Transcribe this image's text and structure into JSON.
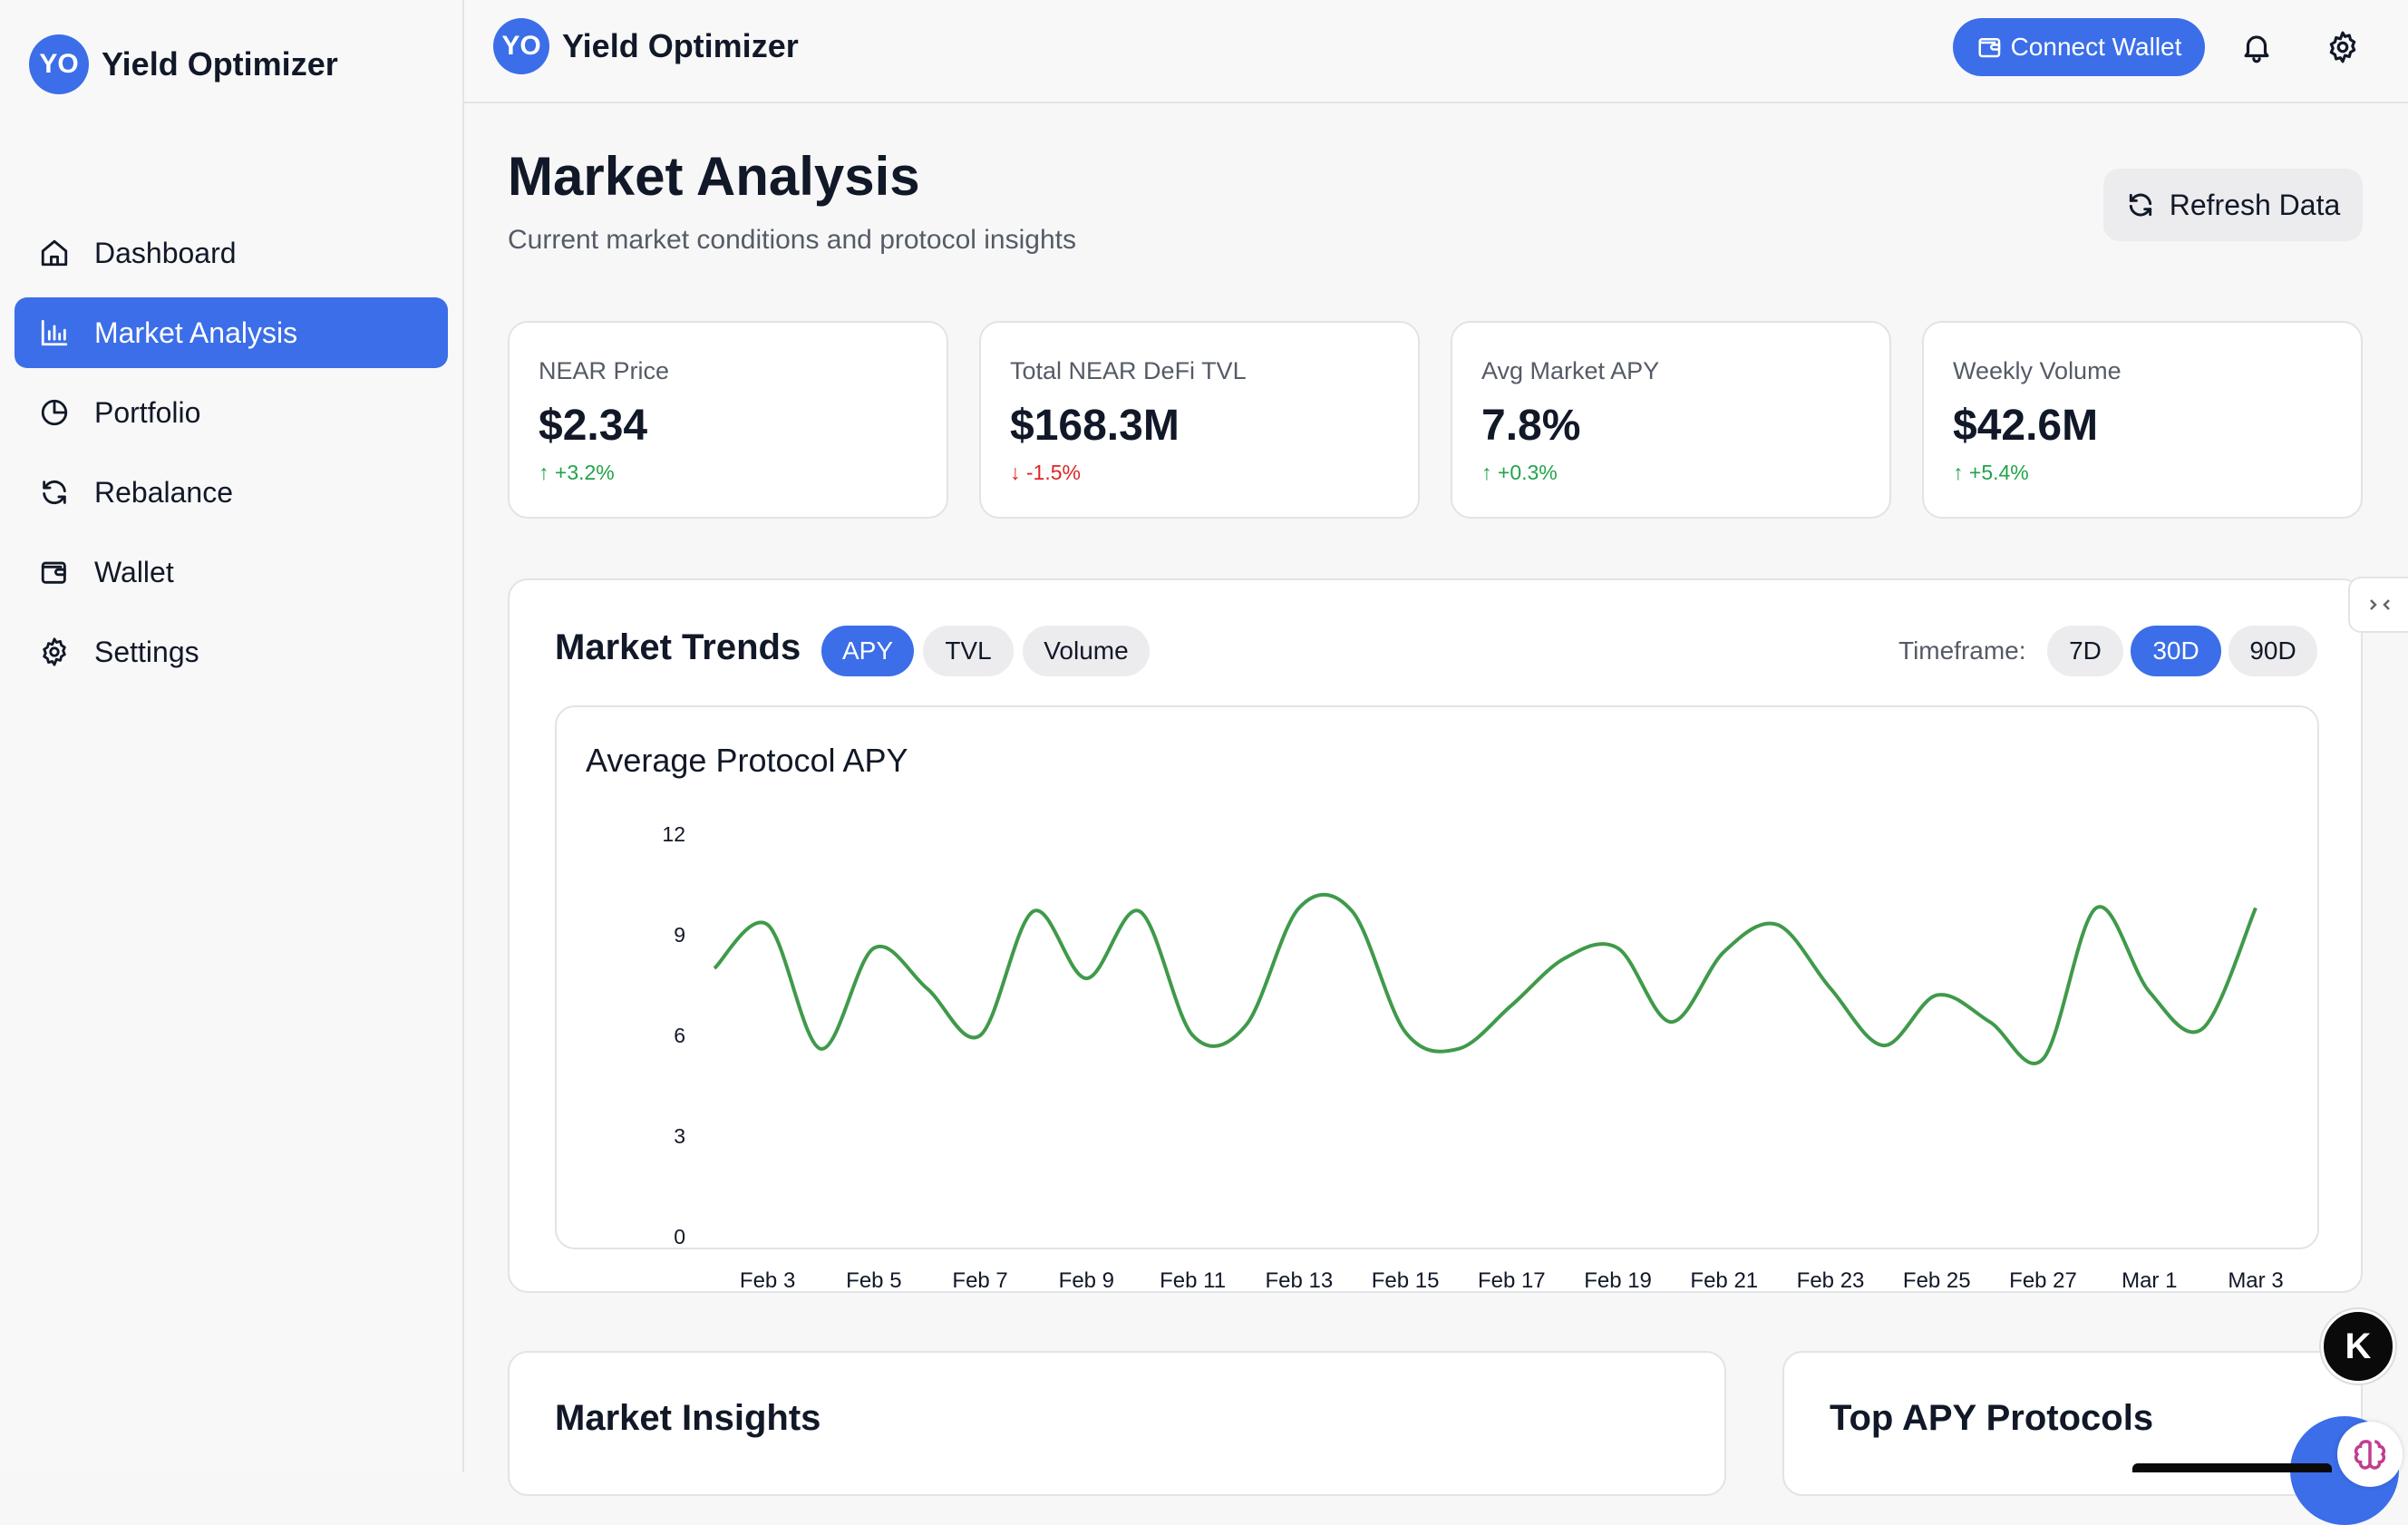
{
  "app": {
    "brand_initials": "YO",
    "brand_name": "Yield Optimizer",
    "accent_color": "#3b6ee8"
  },
  "sidebar": {
    "items": [
      {
        "label": "Dashboard",
        "icon": "home-icon",
        "active": false
      },
      {
        "label": "Market Analysis",
        "icon": "bar-chart-icon",
        "active": true
      },
      {
        "label": "Portfolio",
        "icon": "pie-chart-icon",
        "active": false
      },
      {
        "label": "Rebalance",
        "icon": "refresh-icon",
        "active": false
      },
      {
        "label": "Wallet",
        "icon": "wallet-icon",
        "active": false
      },
      {
        "label": "Settings",
        "icon": "gear-icon",
        "active": false
      }
    ]
  },
  "topbar": {
    "connect_wallet_label": "Connect Wallet",
    "icons": [
      "wallet-icon",
      "bell-icon",
      "gear-icon"
    ]
  },
  "page": {
    "title": "Market Analysis",
    "subtitle": "Current market conditions and protocol insights",
    "refresh_label": "Refresh Data"
  },
  "stats": [
    {
      "label": "NEAR Price",
      "value": "$2.34",
      "change": "↑ +3.2%",
      "direction": "up"
    },
    {
      "label": "Total NEAR DeFi TVL",
      "value": "$168.3M",
      "change": "↓ -1.5%",
      "direction": "down"
    },
    {
      "label": "Avg Market APY",
      "value": "7.8%",
      "change": "↑ +0.3%",
      "direction": "up"
    },
    {
      "label": "Weekly Volume",
      "value": "$42.6M",
      "change": "↑ +5.4%",
      "direction": "up"
    }
  ],
  "trends": {
    "title": "Market Trends",
    "metric_tabs": [
      {
        "label": "APY",
        "active": true
      },
      {
        "label": "TVL",
        "active": false
      },
      {
        "label": "Volume",
        "active": false
      }
    ],
    "timeframe_label": "Timeframe:",
    "timeframes": [
      {
        "label": "7D",
        "active": false
      },
      {
        "label": "30D",
        "active": true
      },
      {
        "label": "90D",
        "active": false
      }
    ]
  },
  "chart_data": {
    "type": "line",
    "title": "Average Protocol APY",
    "ylim": [
      0,
      12
    ],
    "yticks": [
      0,
      3,
      6,
      9,
      12
    ],
    "xtick_labels": [
      "Feb 3",
      "Feb 5",
      "Feb 7",
      "Feb 9",
      "Feb 11",
      "Feb 13",
      "Feb 15",
      "Feb 17",
      "Feb 19",
      "Feb 21",
      "Feb 23",
      "Feb 25",
      "Feb 27",
      "Mar 1",
      "Mar 3"
    ],
    "series": [
      {
        "color": "#3f9a4a",
        "x": [
          "Feb 2",
          "Feb 3",
          "Feb 4",
          "Feb 5",
          "Feb 6",
          "Feb 7",
          "Feb 8",
          "Feb 9",
          "Feb 10",
          "Feb 11",
          "Feb 12",
          "Feb 13",
          "Feb 14",
          "Feb 15",
          "Feb 16",
          "Feb 17",
          "Feb 18",
          "Feb 19",
          "Feb 20",
          "Feb 21",
          "Feb 22",
          "Feb 23",
          "Feb 24",
          "Feb 25",
          "Feb 26",
          "Feb 27",
          "Feb 28",
          "Mar 1",
          "Mar 2",
          "Mar 3"
        ],
        "values": [
          8.0,
          9.3,
          5.6,
          8.6,
          7.4,
          6.0,
          9.7,
          7.7,
          9.7,
          6.0,
          6.3,
          9.8,
          9.7,
          6.1,
          5.6,
          6.9,
          8.3,
          8.6,
          6.4,
          8.5,
          9.3,
          7.4,
          5.7,
          7.2,
          6.4,
          5.3,
          9.8,
          7.3,
          6.2,
          9.8
        ]
      }
    ]
  },
  "bottom": {
    "insights_title": "Market Insights",
    "top_protocols_title": "Top APY Protocols"
  },
  "floating": {
    "k_badge": "K"
  }
}
